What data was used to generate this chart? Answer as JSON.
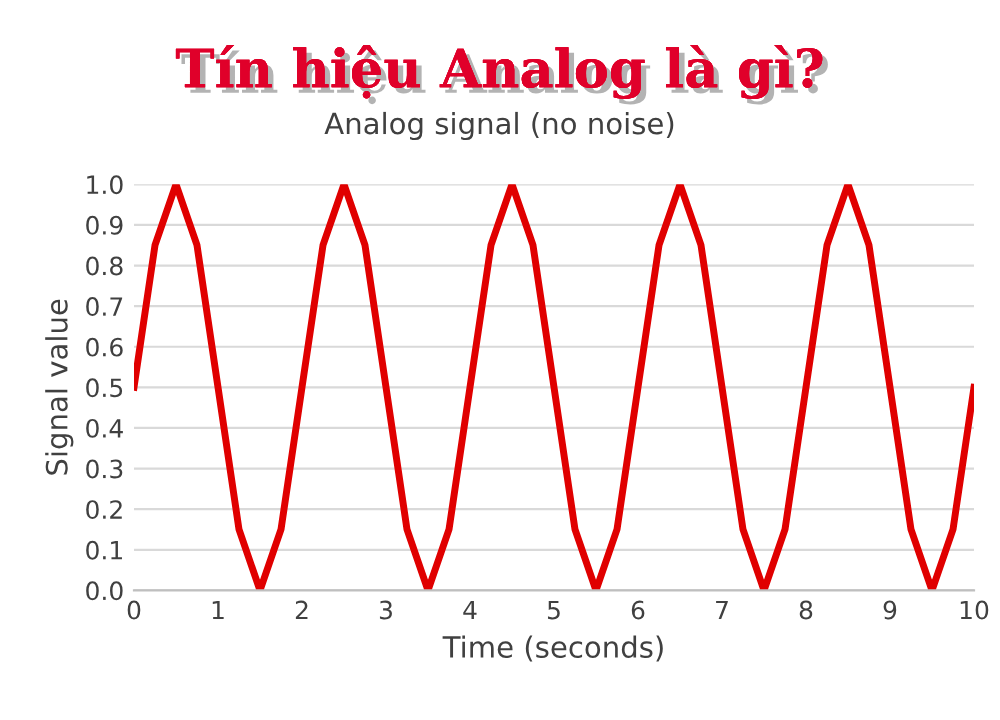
{
  "chart_data": {
    "type": "line",
    "title": "Tín hiệu Analog là gì?",
    "subtitle": "Analog signal (no noise)",
    "xlabel": "Time (seconds)",
    "ylabel": "Signal value",
    "x": [
      0,
      0.25,
      0.5,
      0.75,
      1,
      1.25,
      1.5,
      1.75,
      2,
      2.25,
      2.5,
      2.75,
      3,
      3.25,
      3.5,
      3.75,
      4,
      4.25,
      4.5,
      4.75,
      5,
      5.25,
      5.5,
      5.75,
      6,
      6.25,
      6.5,
      6.75,
      7,
      7.25,
      7.5,
      7.75,
      8,
      8.25,
      8.5,
      8.75,
      9,
      9.25,
      9.5,
      9.75,
      10
    ],
    "series": [
      {
        "color": "#e00000",
        "values": [
          0.5,
          0.85,
          1,
          0.85,
          0.5,
          0.15,
          0,
          0.15,
          0.5,
          0.85,
          1,
          0.85,
          0.5,
          0.15,
          0,
          0.15,
          0.5,
          0.85,
          1,
          0.85,
          0.5,
          0.15,
          0,
          0.15,
          0.5,
          0.85,
          1,
          0.85,
          0.5,
          0.15,
          0,
          0.15,
          0.5,
          0.85,
          1,
          0.85,
          0.5,
          0.15,
          0,
          0.15,
          0.5
        ]
      }
    ],
    "xlim": [
      0,
      10
    ],
    "xticks": [
      0,
      1,
      2,
      3,
      4,
      5,
      6,
      7,
      8,
      9,
      10
    ],
    "ylim": [
      0,
      1
    ],
    "yticks": [
      {
        "value": 0,
        "label": "0.0"
      },
      {
        "value": 0.1,
        "label": "0.1"
      },
      {
        "value": 0.2,
        "label": "0.2"
      },
      {
        "value": 0.3,
        "label": "0.3"
      },
      {
        "value": 0.4,
        "label": "0.4"
      },
      {
        "value": 0.5,
        "label": "0.5"
      },
      {
        "value": 0.6,
        "label": "0.6"
      },
      {
        "value": 0.7,
        "label": "0.7"
      },
      {
        "value": 0.8,
        "label": "0.8"
      },
      {
        "value": 0.9,
        "label": "0.9"
      },
      {
        "value": 1,
        "label": "1.0"
      }
    ],
    "grid": "y",
    "marker": "none",
    "line_style": "solid",
    "legend": false
  }
}
